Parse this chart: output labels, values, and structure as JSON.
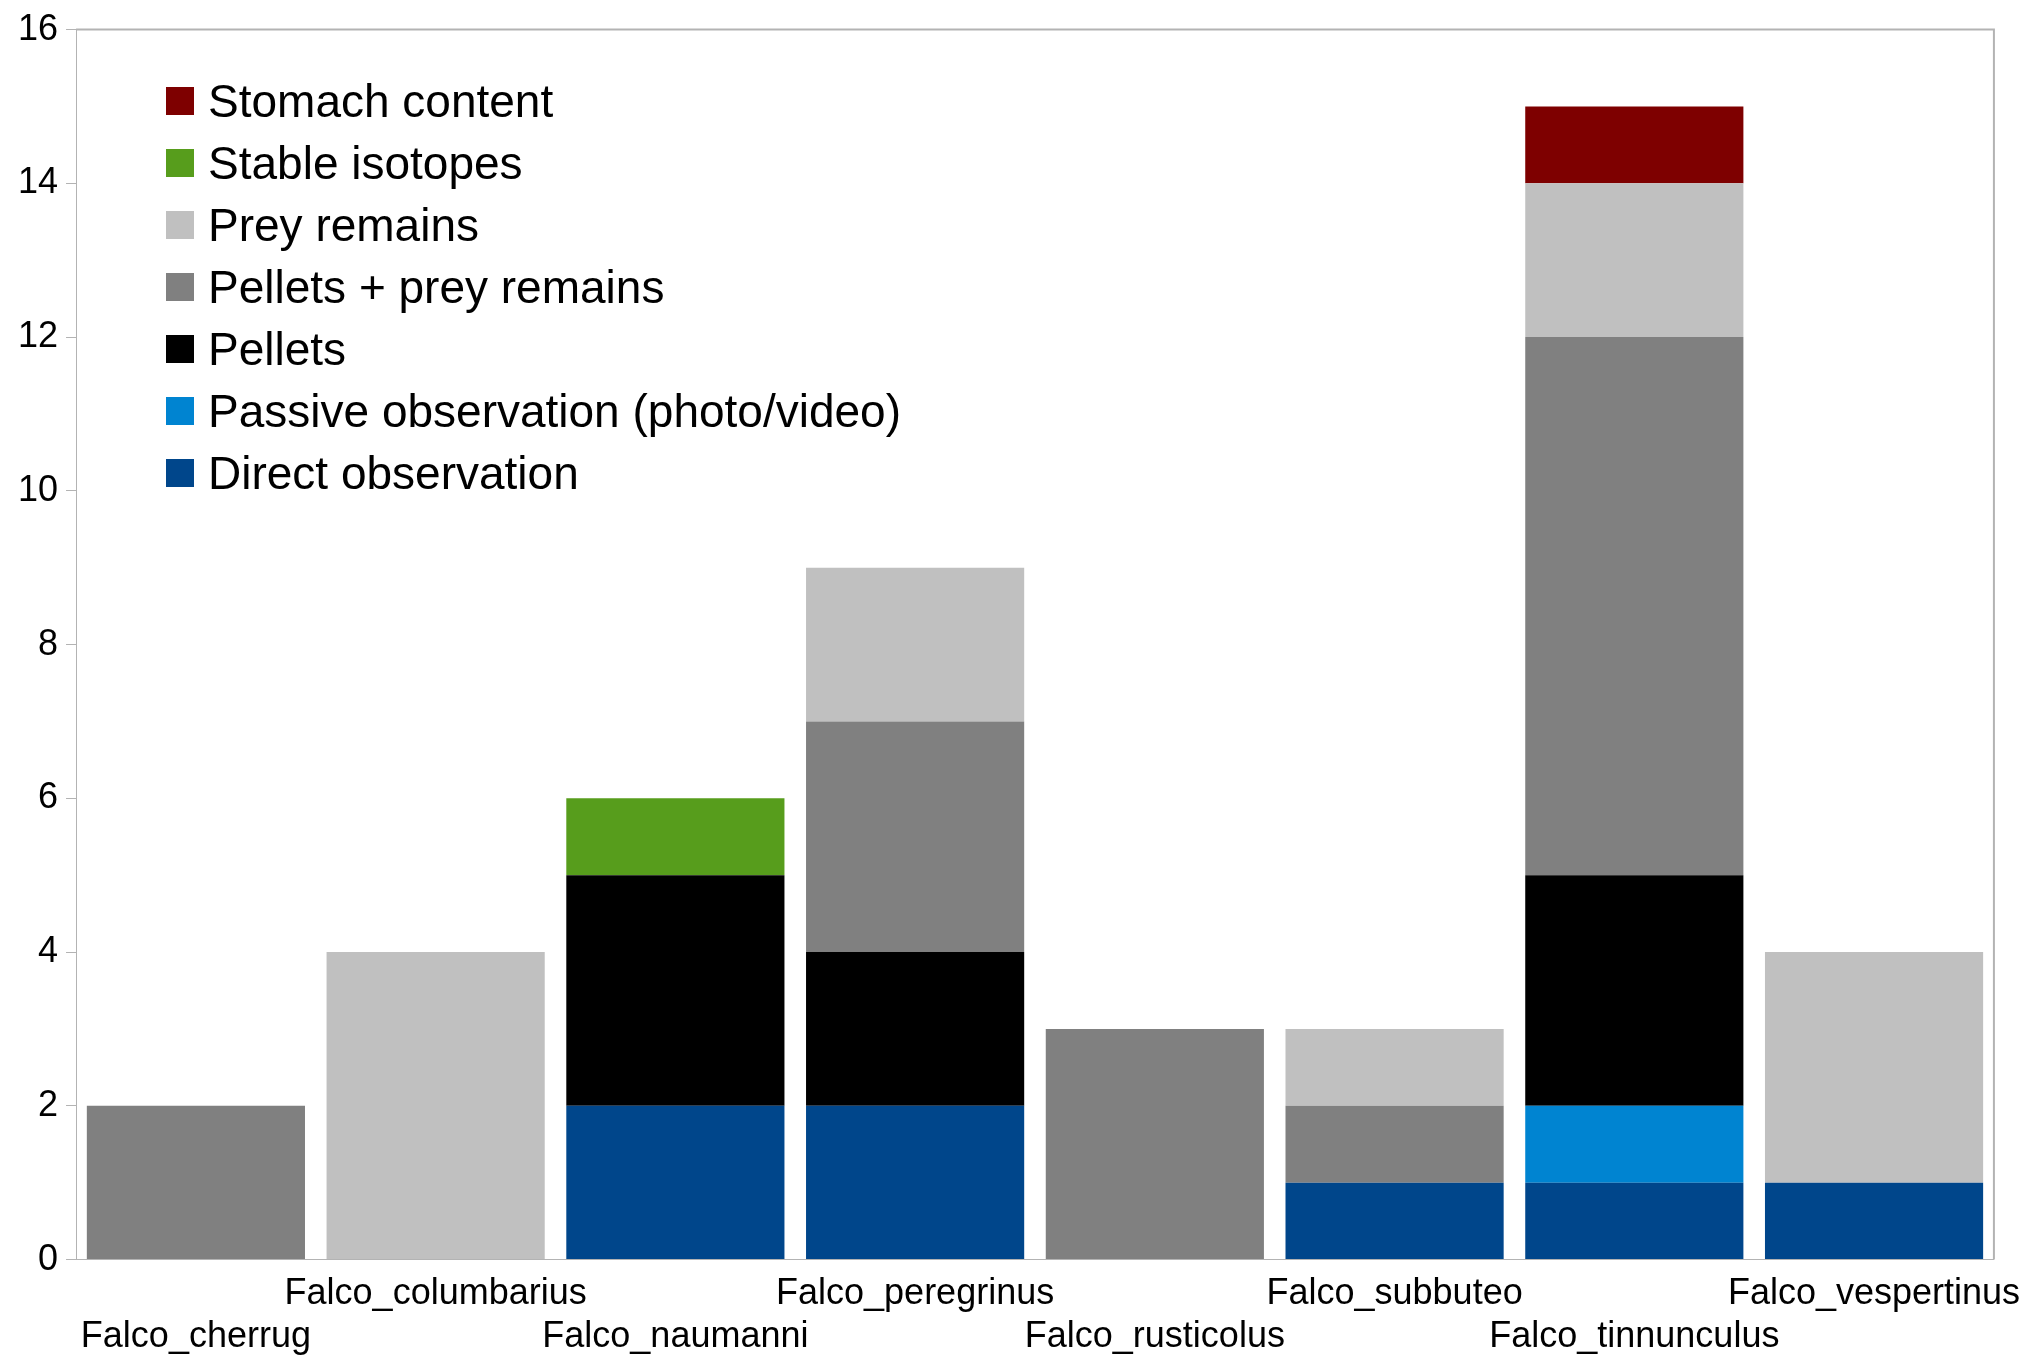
{
  "chart_data": {
    "type": "bar",
    "stacked": true,
    "grid": false,
    "legend": "top left",
    "categories": [
      "Falco_cherrug",
      "Falco_columbarius",
      "Falco_naumanni",
      "Falco_peregrinus",
      "Falco_rusticolus",
      "Falco_subbuteo",
      "Falco_tinnunculus",
      "Falco_vespertinus"
    ],
    "ylim": [
      0,
      16
    ],
    "yticks": [
      0,
      2,
      4,
      6,
      8,
      10,
      12,
      14,
      16
    ],
    "series": [
      {
        "name": "Direct observation",
        "color": "#00468b",
        "values": [
          0,
          0,
          2,
          2,
          0,
          1,
          1,
          1
        ]
      },
      {
        "name": "Passive observation (photo/video)",
        "color": "#0084d1",
        "values": [
          0,
          0,
          0,
          0,
          0,
          0,
          1,
          0
        ]
      },
      {
        "name": "Pellets",
        "color": "#000000",
        "values": [
          0,
          0,
          3,
          2,
          0,
          0,
          3,
          0
        ]
      },
      {
        "name": "Pellets + prey remains",
        "color": "#808080",
        "values": [
          2,
          0,
          0,
          3,
          3,
          1,
          7,
          0
        ]
      },
      {
        "name": "Prey remains",
        "color": "#c0c0c0",
        "values": [
          0,
          4,
          0,
          2,
          0,
          1,
          2,
          3
        ]
      },
      {
        "name": "Stable isotopes",
        "color": "#579d1c",
        "values": [
          0,
          0,
          1,
          0,
          0,
          0,
          0,
          0
        ]
      },
      {
        "name": "Stomach content",
        "color": "#7e0000",
        "values": [
          0,
          0,
          0,
          0,
          0,
          0,
          1,
          0
        ]
      }
    ]
  }
}
